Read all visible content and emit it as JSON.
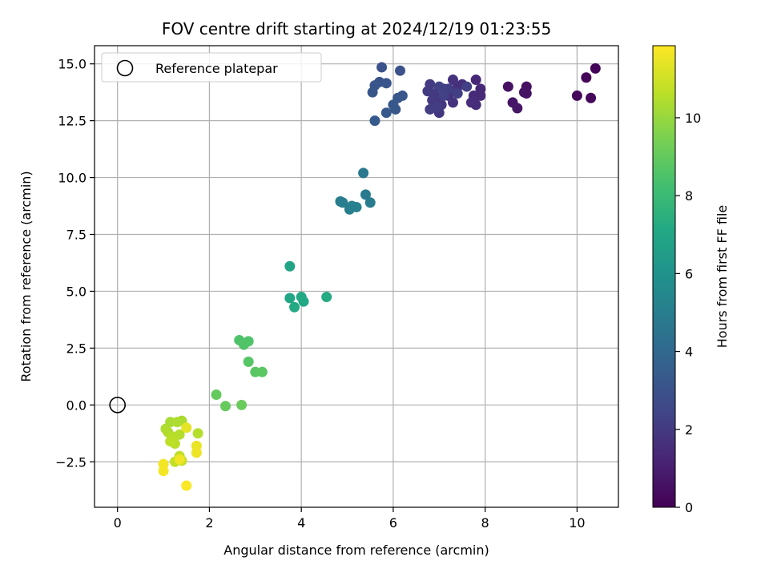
{
  "chart_data": {
    "type": "scatter",
    "title": "FOV centre drift starting at 2024/12/19 01:23:55",
    "xlabel": "Angular distance from reference (arcmin)",
    "ylabel": "Rotation from reference (arcmin)",
    "xlim": [
      -0.5,
      10.9
    ],
    "ylim": [
      -4.5,
      15.8
    ],
    "xticks": [
      0,
      2,
      4,
      6,
      8,
      10
    ],
    "yticks": [
      -2.5,
      0.0,
      2.5,
      5.0,
      7.5,
      10.0,
      12.5,
      15.0
    ],
    "xtick_labels": [
      "0",
      "2",
      "4",
      "6",
      "8",
      "10"
    ],
    "ytick_labels": [
      "−2.5",
      "0.0",
      "2.5",
      "5.0",
      "7.5",
      "10.0",
      "12.5",
      "15.0"
    ],
    "grid": true,
    "colormap": "viridis",
    "colorbar": {
      "label": "Hours from first FF file",
      "range": [
        0,
        11.85
      ],
      "ticks": [
        0,
        2,
        4,
        6,
        8,
        10
      ],
      "tick_labels": [
        "0",
        "2",
        "4",
        "6",
        "8",
        "10"
      ]
    },
    "reference": {
      "label": "Reference platepar",
      "x": 0,
      "y": 0
    },
    "legend_position": "top-left",
    "points": [
      {
        "x": 10.4,
        "y": 14.8,
        "t": 0.1
      },
      {
        "x": 10.2,
        "y": 14.4,
        "t": 0.15
      },
      {
        "x": 10.0,
        "y": 13.6,
        "t": 0.2
      },
      {
        "x": 10.3,
        "y": 13.5,
        "t": 0.25
      },
      {
        "x": 8.9,
        "y": 14.0,
        "t": 0.5
      },
      {
        "x": 8.5,
        "y": 14.0,
        "t": 0.55
      },
      {
        "x": 8.9,
        "y": 13.7,
        "t": 0.6
      },
      {
        "x": 8.85,
        "y": 13.75,
        "t": 0.62
      },
      {
        "x": 8.6,
        "y": 13.3,
        "t": 0.65
      },
      {
        "x": 8.7,
        "y": 13.05,
        "t": 0.7
      },
      {
        "x": 7.9,
        "y": 13.9,
        "t": 1.3
      },
      {
        "x": 7.8,
        "y": 14.3,
        "t": 1.3
      },
      {
        "x": 7.9,
        "y": 13.6,
        "t": 1.4
      },
      {
        "x": 7.75,
        "y": 13.6,
        "t": 1.45
      },
      {
        "x": 7.8,
        "y": 13.2,
        "t": 1.5
      },
      {
        "x": 7.7,
        "y": 13.3,
        "t": 1.55
      },
      {
        "x": 7.5,
        "y": 14.1,
        "t": 1.6
      },
      {
        "x": 7.4,
        "y": 14.0,
        "t": 1.6
      },
      {
        "x": 7.3,
        "y": 14.3,
        "t": 1.65
      },
      {
        "x": 7.35,
        "y": 13.8,
        "t": 1.7
      },
      {
        "x": 7.2,
        "y": 13.6,
        "t": 1.75
      },
      {
        "x": 7.3,
        "y": 13.3,
        "t": 1.75
      },
      {
        "x": 7.1,
        "y": 13.9,
        "t": 1.8
      },
      {
        "x": 7.0,
        "y": 13.5,
        "t": 1.85
      },
      {
        "x": 7.05,
        "y": 13.2,
        "t": 1.9
      },
      {
        "x": 7.0,
        "y": 12.85,
        "t": 1.9
      },
      {
        "x": 6.9,
        "y": 13.7,
        "t": 1.95
      },
      {
        "x": 6.85,
        "y": 13.4,
        "t": 2.0
      },
      {
        "x": 6.8,
        "y": 14.1,
        "t": 2.0
      },
      {
        "x": 6.75,
        "y": 13.8,
        "t": 2.05
      },
      {
        "x": 6.8,
        "y": 13.0,
        "t": 2.1
      },
      {
        "x": 6.95,
        "y": 13.1,
        "t": 2.1
      },
      {
        "x": 7.2,
        "y": 13.9,
        "t": 2.15
      },
      {
        "x": 7.4,
        "y": 13.7,
        "t": 2.2
      },
      {
        "x": 7.6,
        "y": 14.0,
        "t": 2.2
      },
      {
        "x": 7.1,
        "y": 13.6,
        "t": 2.25
      },
      {
        "x": 7.0,
        "y": 14.0,
        "t": 2.3
      },
      {
        "x": 5.75,
        "y": 14.85,
        "t": 3.0
      },
      {
        "x": 6.15,
        "y": 14.7,
        "t": 3.0
      },
      {
        "x": 5.7,
        "y": 14.2,
        "t": 3.05
      },
      {
        "x": 5.6,
        "y": 14.05,
        "t": 3.1
      },
      {
        "x": 5.85,
        "y": 14.15,
        "t": 3.1
      },
      {
        "x": 5.55,
        "y": 13.75,
        "t": 3.15
      },
      {
        "x": 6.2,
        "y": 13.6,
        "t": 3.2
      },
      {
        "x": 6.1,
        "y": 13.5,
        "t": 3.2
      },
      {
        "x": 6.0,
        "y": 13.2,
        "t": 3.25
      },
      {
        "x": 6.05,
        "y": 13.0,
        "t": 3.25
      },
      {
        "x": 5.85,
        "y": 12.85,
        "t": 3.3
      },
      {
        "x": 5.6,
        "y": 12.5,
        "t": 3.35
      },
      {
        "x": 5.35,
        "y": 10.2,
        "t": 4.8
      },
      {
        "x": 5.4,
        "y": 9.25,
        "t": 4.85
      },
      {
        "x": 5.5,
        "y": 8.9,
        "t": 4.9
      },
      {
        "x": 4.85,
        "y": 8.95,
        "t": 4.95
      },
      {
        "x": 4.9,
        "y": 8.9,
        "t": 5.0
      },
      {
        "x": 5.05,
        "y": 8.6,
        "t": 5.0
      },
      {
        "x": 5.1,
        "y": 8.75,
        "t": 5.05
      },
      {
        "x": 5.2,
        "y": 8.7,
        "t": 5.1
      },
      {
        "x": 3.75,
        "y": 6.1,
        "t": 6.9
      },
      {
        "x": 3.75,
        "y": 4.7,
        "t": 7.0
      },
      {
        "x": 4.0,
        "y": 4.75,
        "t": 7.05
      },
      {
        "x": 4.05,
        "y": 4.55,
        "t": 7.1
      },
      {
        "x": 3.85,
        "y": 4.3,
        "t": 7.15
      },
      {
        "x": 4.55,
        "y": 4.75,
        "t": 7.2
      },
      {
        "x": 2.65,
        "y": 2.85,
        "t": 8.5
      },
      {
        "x": 2.85,
        "y": 2.8,
        "t": 8.55
      },
      {
        "x": 2.75,
        "y": 2.65,
        "t": 8.6
      },
      {
        "x": 2.85,
        "y": 1.9,
        "t": 8.7
      },
      {
        "x": 3.0,
        "y": 1.45,
        "t": 8.75
      },
      {
        "x": 3.15,
        "y": 1.45,
        "t": 8.8
      },
      {
        "x": 2.15,
        "y": 0.45,
        "t": 9.0
      },
      {
        "x": 2.35,
        "y": -0.05,
        "t": 9.05
      },
      {
        "x": 2.7,
        "y": 0.0,
        "t": 9.1
      },
      {
        "x": 1.15,
        "y": -0.75,
        "t": 10.3
      },
      {
        "x": 1.4,
        "y": -0.7,
        "t": 10.35
      },
      {
        "x": 1.05,
        "y": -1.05,
        "t": 10.4
      },
      {
        "x": 1.3,
        "y": -0.75,
        "t": 10.4
      },
      {
        "x": 1.1,
        "y": -1.2,
        "t": 10.45
      },
      {
        "x": 1.35,
        "y": -1.3,
        "t": 10.5
      },
      {
        "x": 1.75,
        "y": -1.25,
        "t": 10.5
      },
      {
        "x": 1.2,
        "y": -1.4,
        "t": 10.55
      },
      {
        "x": 1.25,
        "y": -1.7,
        "t": 10.6
      },
      {
        "x": 1.15,
        "y": -1.6,
        "t": 10.65
      },
      {
        "x": 1.35,
        "y": -2.25,
        "t": 10.7
      },
      {
        "x": 1.25,
        "y": -2.5,
        "t": 10.75
      },
      {
        "x": 1.4,
        "y": -2.45,
        "t": 10.8
      },
      {
        "x": 1.5,
        "y": -1.0,
        "t": 11.4
      },
      {
        "x": 1.72,
        "y": -1.8,
        "t": 11.5
      },
      {
        "x": 1.72,
        "y": -2.1,
        "t": 11.55
      },
      {
        "x": 1.35,
        "y": -2.4,
        "t": 11.6
      },
      {
        "x": 1.0,
        "y": -2.6,
        "t": 11.65
      },
      {
        "x": 1.0,
        "y": -2.9,
        "t": 11.7
      },
      {
        "x": 1.5,
        "y": -3.55,
        "t": 11.8
      }
    ]
  }
}
